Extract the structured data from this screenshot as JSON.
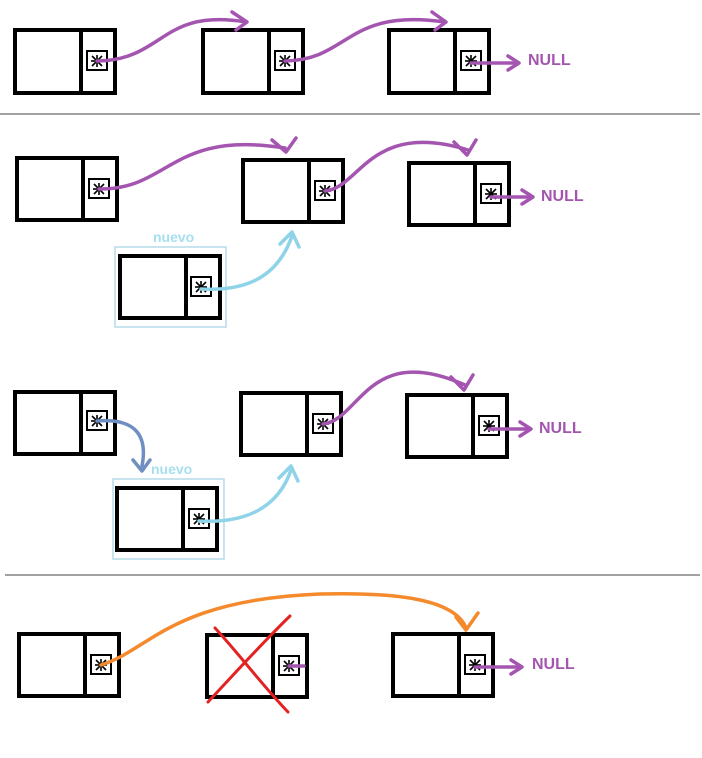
{
  "labels": {
    "null": "NULL",
    "nuevo": "nuevo"
  },
  "colors": {
    "node_border": "#000000",
    "pointer_arrow": "#a455b0",
    "new_node_arrow": "#8fd3e8",
    "new_node_label": "#a6dff0",
    "new_node_frame": "#b5dbe8",
    "redirect_arrow": "#6f8fc2",
    "bypass_arrow": "#f48a2c",
    "delete_mark": "#e32222",
    "separator": "#444444"
  },
  "sections": [
    {
      "name": "initial-list",
      "nodes": 3
    },
    {
      "name": "insert-new-node",
      "nodes": 4
    },
    {
      "name": "link-new-node",
      "nodes": 4
    },
    {
      "name": "delete-node",
      "nodes": 3
    }
  ]
}
